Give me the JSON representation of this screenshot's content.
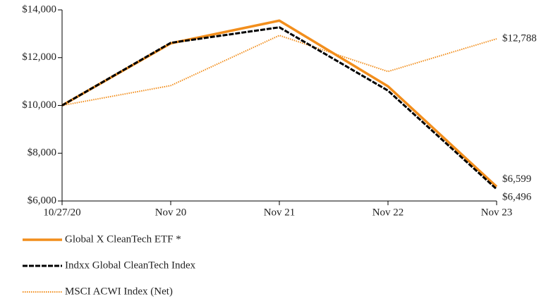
{
  "chart_data": {
    "type": "line",
    "categories": [
      "10/27/20",
      "Nov 20",
      "Nov 21",
      "Nov 22",
      "Nov 23"
    ],
    "series": [
      {
        "name": "Global X CleanTech ETF *",
        "color": "#f28e1c",
        "line_style": "solid",
        "values": [
          10000,
          12600,
          13550,
          10800,
          6599
        ],
        "value_labels": [
          null,
          null,
          null,
          null,
          "$6,599"
        ]
      },
      {
        "name": "Indxx Global CleanTech Index",
        "color": "#000000",
        "line_style": "dashed",
        "values": [
          10000,
          12620,
          13270,
          10620,
          6496
        ],
        "value_labels": [
          null,
          null,
          null,
          null,
          "$6,496"
        ]
      },
      {
        "name": "MSCI ACWI Index (Net)",
        "color": "#f28e1c",
        "line_style": "dotted",
        "values": [
          10000,
          10830,
          12930,
          11420,
          12788
        ],
        "value_labels": [
          null,
          null,
          null,
          null,
          "$12,788"
        ]
      }
    ],
    "ylim": [
      6000,
      14000
    ],
    "yticks": [
      {
        "value": 6000,
        "label": "$6,000"
      },
      {
        "value": 8000,
        "label": "$8,000"
      },
      {
        "value": 10000,
        "label": "$10,000"
      },
      {
        "value": 12000,
        "label": "$12,000"
      },
      {
        "value": 14000,
        "label": "$14,000"
      }
    ],
    "grid": false
  }
}
